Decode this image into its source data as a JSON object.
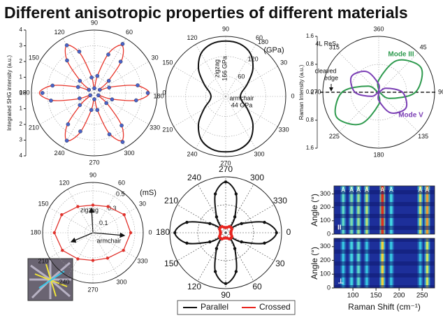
{
  "title": "Different anisotropic properties of different materials",
  "chart_data": [
    {
      "type": "polar",
      "ylabel": "Integrated SHG intensity (a.u.)",
      "zero": "right",
      "direction": "counterclockwise",
      "r_axis": "vertical",
      "rlim": [
        0,
        4
      ],
      "rticks": [
        4,
        3,
        2,
        1,
        0,
        {
          "value": -1,
          "label": "1"
        },
        {
          "value": -2,
          "label": "2"
        },
        {
          "value": -3,
          "label": "3"
        },
        {
          "value": -4,
          "label": "4"
        }
      ],
      "angle_ticks": [
        0,
        30,
        60,
        90,
        120,
        150,
        180,
        210,
        240,
        270,
        300,
        330
      ],
      "theta": [
        0,
        10,
        20,
        30,
        40,
        50,
        60,
        70,
        80,
        90,
        100,
        110,
        120,
        130,
        140,
        150,
        160,
        170,
        180,
        190,
        200,
        210,
        220,
        230,
        240,
        250,
        260,
        270,
        280,
        290,
        300,
        310,
        320,
        330,
        340,
        350
      ],
      "series": [
        {
          "color": "#e8352b",
          "line": true,
          "smooth": true,
          "values": [
            3.5,
            2.7,
            1.1,
            0.3,
            1.1,
            2.7,
            3.5,
            2.7,
            1.1,
            0.3,
            1.1,
            2.7,
            3.5,
            2.7,
            1.1,
            0.3,
            1.1,
            2.7,
            3.5,
            2.7,
            1.1,
            0.3,
            1.1,
            2.7,
            3.5,
            2.7,
            1.1,
            0.3,
            1.1,
            2.7,
            3.5,
            2.7,
            1.1,
            0.3,
            1.1,
            2.7
          ]
        },
        {
          "color": "#4a63c8",
          "marker": "circle",
          "values": [
            3.4,
            2.8,
            1.0,
            0.4,
            1.2,
            2.6,
            3.6,
            2.6,
            1.1,
            0.3,
            1.0,
            2.8,
            3.5,
            2.7,
            1.2,
            0.4,
            1.1,
            2.7,
            3.3,
            2.8,
            1.0,
            0.3,
            1.2,
            2.6,
            3.5,
            2.6,
            1.1,
            0.4,
            1.1,
            2.8,
            3.6,
            2.7,
            1.0,
            0.3,
            1.2,
            2.7
          ]
        }
      ]
    },
    {
      "type": "polar",
      "unit": "(GPa)",
      "zero": "right",
      "direction": "counterclockwise",
      "r_label_angle": 60,
      "rlim": [
        0,
        180
      ],
      "rticks": [
        60,
        120,
        180
      ],
      "angle_ticks": [
        0,
        30,
        60,
        90,
        120,
        150,
        180,
        210,
        240,
        270,
        300,
        330
      ],
      "annotations": [
        "zigzag",
        "166 GPa",
        "armchair",
        "44 GPa"
      ],
      "theta": [
        0,
        15,
        30,
        45,
        60,
        75,
        90,
        105,
        120,
        135,
        150,
        165,
        180,
        195,
        210,
        225,
        240,
        255,
        270,
        285,
        300,
        315,
        330,
        345
      ],
      "series": [
        {
          "color": "#111111",
          "line": true,
          "smooth": true,
          "values": [
            44,
            50,
            75,
            115,
            148,
            163,
            166,
            163,
            148,
            115,
            75,
            50,
            44,
            50,
            75,
            115,
            148,
            163,
            166,
            163,
            148,
            115,
            75,
            50
          ]
        }
      ]
    },
    {
      "type": "polar",
      "ylabel": "Raman Intensity (a.u.)",
      "zero": "top",
      "direction": "clockwise",
      "r_axis": "vertical",
      "legend": "label",
      "rlim": [
        0,
        1.6
      ],
      "rticks": [
        {
          "value": 1.6,
          "label": "1.6"
        },
        {
          "value": 0.8,
          "label": "0.8"
        },
        {
          "value": 0,
          "label": "0.0"
        },
        {
          "value": -0.8,
          "label": "0.8"
        },
        {
          "value": -1.6,
          "label": "1.6"
        }
      ],
      "angle_ticks": [
        360,
        45,
        90,
        135,
        180,
        225,
        270,
        315
      ],
      "annotations": [
        "4L ReS₂",
        "cleaved",
        "edge"
      ],
      "theta": [
        0,
        30,
        60,
        90,
        120,
        150,
        180,
        210,
        240,
        270,
        300,
        330
      ],
      "series": [
        {
          "name": "Mode III",
          "color": "#2e9a4e",
          "line": true,
          "smooth": true,
          "values": [
            0.35,
            1.05,
            1.4,
            1.05,
            0.35,
            0,
            0.35,
            1.05,
            1.4,
            1.05,
            0.35,
            0
          ]
        },
        {
          "name": "Mode V",
          "color": "#7b3fb5",
          "line": true,
          "smooth": true,
          "values": [
            0.23,
            0,
            0.23,
            0.68,
            0.9,
            0.68,
            0.23,
            0,
            0.23,
            0.68,
            0.9,
            0.68
          ]
        }
      ]
    },
    {
      "type": "polar",
      "unit": "(mS)",
      "zero": "right",
      "direction": "counterclockwise",
      "r_label_angle": 60,
      "rlim": [
        0,
        0.6
      ],
      "rticks": [
        0.1,
        0.3,
        0.5
      ],
      "angle_ticks": [
        0,
        30,
        60,
        90,
        120,
        150,
        180,
        210,
        240,
        270,
        300,
        330
      ],
      "annotations": [
        "zigzag",
        "armchair"
      ],
      "theta": [
        0,
        30,
        60,
        90,
        120,
        150,
        180,
        210,
        240,
        270,
        300,
        330
      ],
      "series": [
        {
          "color": "#e0302a",
          "line": true,
          "smooth": false,
          "marker": "circle",
          "values": [
            0.45,
            0.43,
            0.36,
            0.33,
            0.36,
            0.43,
            0.46,
            0.42,
            0.36,
            0.33,
            0.35,
            0.42
          ]
        }
      ]
    },
    {
      "type": "polar",
      "zero": "right",
      "direction": "clockwise",
      "legend": "below",
      "rlim": [
        0,
        1.1
      ],
      "rgrid": [
        0.55
      ],
      "angle_ticks": [
        0,
        30,
        60,
        90,
        120,
        150,
        180,
        210,
        240,
        270,
        300,
        330
      ],
      "theta": [
        0,
        15,
        30,
        45,
        60,
        75,
        90,
        105,
        120,
        135,
        150,
        165,
        180,
        195,
        210,
        225,
        240,
        255,
        270,
        285,
        300,
        315,
        330,
        345
      ],
      "series": [
        {
          "name": "Parallel",
          "color": "#111111",
          "line": true,
          "smooth": true,
          "marker": "circle",
          "values": [
            1,
            0.79,
            0.36,
            0.15,
            0.36,
            0.79,
            1,
            0.79,
            0.36,
            0.15,
            0.36,
            0.79,
            1,
            0.79,
            0.36,
            0.15,
            0.36,
            0.79,
            1,
            0.79,
            0.36,
            0.15,
            0.36,
            0.79
          ]
        },
        {
          "name": "Crossed",
          "color": "#e8251f",
          "line": true,
          "smooth": false,
          "marker": "circle",
          "values": [
            0.1,
            0.11,
            0.14,
            0.15,
            0.14,
            0.11,
            0.1,
            0.11,
            0.14,
            0.15,
            0.14,
            0.11,
            0.1,
            0.11,
            0.14,
            0.15,
            0.14,
            0.11,
            0.1,
            0.11,
            0.14,
            0.15,
            0.14,
            0.11
          ]
        }
      ]
    },
    {
      "type": "heatmap",
      "xlabel": "Raman Shift (cm⁻¹)",
      "ylabel": "Angle (°)",
      "xlim": [
        59,
        277
      ],
      "xticks": [
        100,
        150,
        200,
        250
      ],
      "ylim": [
        0,
        360
      ],
      "yticks": [
        0,
        100,
        200,
        300
      ],
      "peaks": [
        79,
        97,
        112,
        130,
        164,
        183,
        246,
        261
      ],
      "peak_labels": [
        "A",
        "A",
        "A",
        "A",
        "A",
        "A",
        "A",
        "A"
      ],
      "panels": [
        {
          "label": "II",
          "intensity": [
            0.4,
            0.45,
            0.5,
            0.55,
            1,
            0.35,
            0.6,
            0.8
          ]
        },
        {
          "label": "⊥",
          "intensity": [
            0.3,
            0.35,
            0.4,
            0.3,
            0.7,
            0.3,
            0.3,
            0.6
          ]
        }
      ]
    }
  ]
}
